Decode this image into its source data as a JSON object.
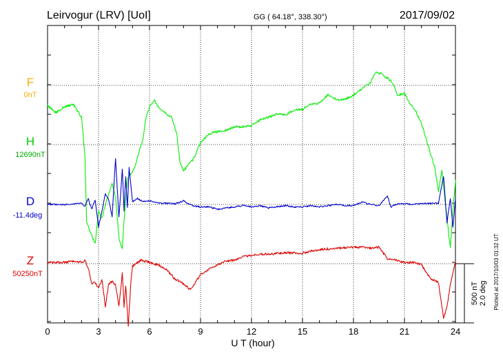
{
  "header": {
    "station": "Leirvogur (LRV)  [UoI]",
    "coords": "GG ( 64.18°, 338.30°)",
    "date": "2017/09/02"
  },
  "footer": {
    "xlabel": "U T (hour)",
    "plotted": "Plotted at 2017/10/03 01:32 UT",
    "scale_nt": "500 nT",
    "scale_deg": "2.0 deg"
  },
  "colors": {
    "F": "#ffaa00",
    "H": "#00ee00",
    "D": "#0000cc",
    "Z": "#dd0000"
  },
  "chart_data": {
    "type": "line",
    "xlabel": "U T (hour)",
    "xlim": [
      0,
      24
    ],
    "xticks": [
      "0",
      "3",
      "6",
      "9",
      "12",
      "15",
      "18",
      "21",
      "24"
    ],
    "grid": true,
    "scale_bar": {
      "nT": 500,
      "deg": 2.0
    },
    "series": [
      {
        "name": "F",
        "baseline": "0nT",
        "points": []
      },
      {
        "name": "H",
        "baseline": "12690nT",
        "unit": "nT",
        "points": [
          [
            0,
            330
          ],
          [
            0.5,
            270
          ],
          [
            1,
            320
          ],
          [
            1.5,
            340
          ],
          [
            2,
            230
          ],
          [
            2.2,
            -100
          ],
          [
            2.3,
            -650
          ],
          [
            2.5,
            -730
          ],
          [
            2.8,
            -840
          ],
          [
            3,
            -560
          ],
          [
            3.2,
            -620
          ],
          [
            3.5,
            -460
          ],
          [
            3.8,
            -330
          ],
          [
            4,
            -440
          ],
          [
            4.2,
            -790
          ],
          [
            4.4,
            -880
          ],
          [
            4.5,
            -640
          ],
          [
            4.7,
            -290
          ],
          [
            5,
            -230
          ],
          [
            5.2,
            -160
          ],
          [
            5.4,
            -50
          ],
          [
            5.6,
            40
          ],
          [
            5.8,
            230
          ],
          [
            6,
            320
          ],
          [
            6.3,
            370
          ],
          [
            6.6,
            300
          ],
          [
            7,
            260
          ],
          [
            7.3,
            230
          ],
          [
            7.6,
            90
          ],
          [
            7.8,
            -150
          ],
          [
            8,
            -220
          ],
          [
            8.3,
            -170
          ],
          [
            8.6,
            -120
          ],
          [
            9,
            20
          ],
          [
            9.5,
            90
          ],
          [
            10,
            110
          ],
          [
            10.5,
            120
          ],
          [
            11,
            150
          ],
          [
            11.5,
            150
          ],
          [
            12,
            160
          ],
          [
            12.5,
            210
          ],
          [
            13,
            230
          ],
          [
            13.5,
            260
          ],
          [
            14,
            250
          ],
          [
            14.5,
            290
          ],
          [
            15,
            300
          ],
          [
            15.5,
            340
          ],
          [
            16,
            350
          ],
          [
            16.5,
            420
          ],
          [
            17,
            380
          ],
          [
            17.5,
            380
          ],
          [
            18,
            420
          ],
          [
            18.5,
            470
          ],
          [
            19,
            520
          ],
          [
            19.3,
            610
          ],
          [
            19.6,
            600
          ],
          [
            20,
            560
          ],
          [
            20.3,
            520
          ],
          [
            20.6,
            420
          ],
          [
            21,
            430
          ],
          [
            21.3,
            350
          ],
          [
            21.6,
            300
          ],
          [
            22,
            180
          ],
          [
            22.4,
            -10
          ],
          [
            22.8,
            -200
          ],
          [
            23,
            -400
          ],
          [
            23.2,
            -220
          ],
          [
            23.5,
            -620
          ],
          [
            23.7,
            -880
          ],
          [
            23.85,
            -560
          ],
          [
            24,
            -300
          ]
        ]
      },
      {
        "name": "D",
        "baseline": "-11.4deg",
        "unit": "deg",
        "points": [
          [
            0,
            0
          ],
          [
            1,
            0
          ],
          [
            2,
            0.04
          ],
          [
            2.2,
            -0.06
          ],
          [
            2.4,
            0.2
          ],
          [
            2.6,
            -0.16
          ],
          [
            2.8,
            0.16
          ],
          [
            3,
            -0.76
          ],
          [
            3.2,
            -0.24
          ],
          [
            3.4,
            0.36
          ],
          [
            3.6,
            0.16
          ],
          [
            3.8,
            -0.4
          ],
          [
            4,
            1.56
          ],
          [
            4.2,
            -0.44
          ],
          [
            4.4,
            1.2
          ],
          [
            4.5,
            -0.2
          ],
          [
            4.6,
            0.92
          ],
          [
            4.7,
            -0.12
          ],
          [
            4.8,
            1.24
          ],
          [
            5,
            0.1
          ],
          [
            5.3,
            0.2
          ],
          [
            5.6,
            0.1
          ],
          [
            6,
            0.12
          ],
          [
            6.5,
            0.04
          ],
          [
            7,
            0.04
          ],
          [
            7.5,
            0.02
          ],
          [
            8,
            0.12
          ],
          [
            8.5,
            -0.04
          ],
          [
            9,
            -0.08
          ],
          [
            9.5,
            -0.08
          ],
          [
            10,
            -0.16
          ],
          [
            10.5,
            -0.12
          ],
          [
            11,
            -0.08
          ],
          [
            11.5,
            -0.04
          ],
          [
            12,
            -0.08
          ],
          [
            12.5,
            -0.04
          ],
          [
            13,
            -0.12
          ],
          [
            13.5,
            -0.08
          ],
          [
            14,
            -0.04
          ],
          [
            14.5,
            -0.08
          ],
          [
            15,
            -0.08
          ],
          [
            15.5,
            -0.04
          ],
          [
            16,
            -0.08
          ],
          [
            16.5,
            -0.04
          ],
          [
            17,
            0
          ],
          [
            17.5,
            -0.04
          ],
          [
            18,
            -0.04
          ],
          [
            18.5,
            0.08
          ],
          [
            19,
            0
          ],
          [
            19.5,
            -0.04
          ],
          [
            20,
            0.28
          ],
          [
            20.2,
            -0.08
          ],
          [
            20.5,
            0
          ],
          [
            21,
            0.04
          ],
          [
            21.5,
            0
          ],
          [
            22,
            0.04
          ],
          [
            22.5,
            0.04
          ],
          [
            23,
            0.04
          ],
          [
            23.3,
            0.96
          ],
          [
            23.5,
            -0.6
          ],
          [
            23.7,
            0.2
          ],
          [
            23.85,
            -0.76
          ],
          [
            24,
            0.2
          ]
        ]
      },
      {
        "name": "Z",
        "baseline": "50250nT",
        "unit": "nT",
        "points": [
          [
            0,
            10
          ],
          [
            1,
            10
          ],
          [
            1.5,
            20
          ],
          [
            2,
            10
          ],
          [
            2.2,
            30
          ],
          [
            2.4,
            -40
          ],
          [
            2.6,
            -170
          ],
          [
            2.8,
            -160
          ],
          [
            3,
            -210
          ],
          [
            3.2,
            -130
          ],
          [
            3.4,
            -360
          ],
          [
            3.6,
            -170
          ],
          [
            3.8,
            -150
          ],
          [
            4,
            -180
          ],
          [
            4.2,
            -360
          ],
          [
            4.4,
            -80
          ],
          [
            4.5,
            -360
          ],
          [
            4.6,
            -180
          ],
          [
            4.75,
            -530
          ],
          [
            4.9,
            -160
          ],
          [
            5,
            -20
          ],
          [
            5.5,
            30
          ],
          [
            6,
            10
          ],
          [
            6.5,
            -10
          ],
          [
            7,
            -50
          ],
          [
            7.5,
            -130
          ],
          [
            8,
            -170
          ],
          [
            8.4,
            -220
          ],
          [
            8.7,
            -160
          ],
          [
            9,
            -90
          ],
          [
            9.5,
            -50
          ],
          [
            10,
            -10
          ],
          [
            10.5,
            20
          ],
          [
            11,
            30
          ],
          [
            11.5,
            60
          ],
          [
            12,
            70
          ],
          [
            12.5,
            80
          ],
          [
            13,
            80
          ],
          [
            14,
            90
          ],
          [
            15,
            90
          ],
          [
            16,
            120
          ],
          [
            17,
            130
          ],
          [
            18,
            140
          ],
          [
            18.5,
            140
          ],
          [
            19,
            130
          ],
          [
            19.5,
            140
          ],
          [
            20,
            40
          ],
          [
            20.5,
            30
          ],
          [
            21,
            10
          ],
          [
            21.5,
            10
          ],
          [
            22,
            -10
          ],
          [
            22.5,
            -120
          ],
          [
            23,
            -160
          ],
          [
            23.3,
            -460
          ],
          [
            23.5,
            -370
          ],
          [
            23.7,
            -170
          ],
          [
            24,
            20
          ]
        ]
      }
    ]
  }
}
